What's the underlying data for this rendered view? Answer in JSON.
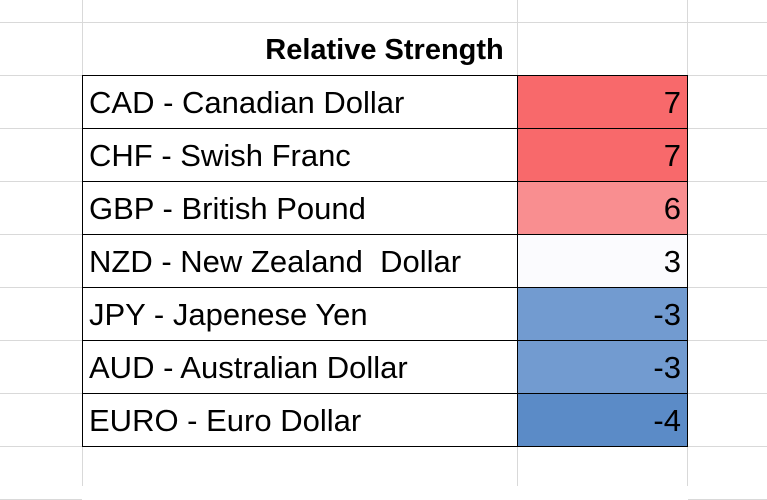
{
  "table": {
    "title": "Relative Strength",
    "rows": [
      [
        "CAD - Canadian Dollar",
        7
      ],
      [
        "CHF - Swish Franc",
        7
      ],
      [
        "GBP - British Pound",
        6
      ],
      [
        "NZD - New Zealand  Dollar",
        3
      ],
      [
        "JPY - Japenese Yen",
        -3
      ],
      [
        "AUD - Australian Dollar",
        -3
      ],
      [
        "EURO - Euro Dollar",
        -4
      ]
    ],
    "fills": [
      "#f8696b",
      "#f8696b",
      "#f98e90",
      "#fbfbfe",
      "#729bd0",
      "#729bd0",
      "#5b8bc7"
    ]
  }
}
